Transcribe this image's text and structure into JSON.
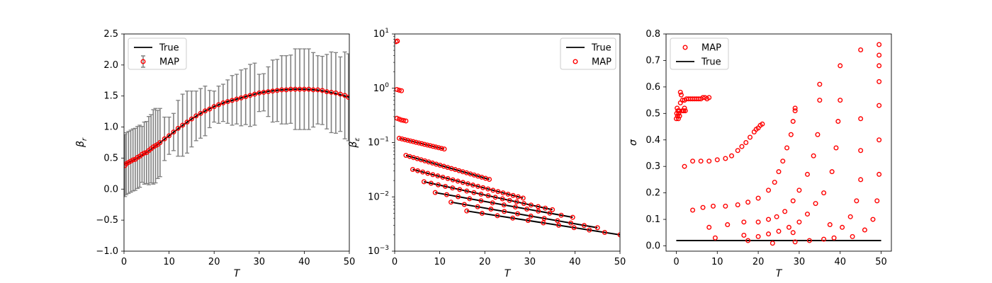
{
  "chart_data": [
    {
      "type": "scatter",
      "xlabel": "T",
      "ylabel": "β_r",
      "xlim": [
        0,
        50
      ],
      "ylim": [
        -1.0,
        2.5
      ],
      "x_ticks": [
        "0",
        "10",
        "20",
        "30",
        "40",
        "50"
      ],
      "y_ticks": [
        "−1.0",
        "−0.5",
        "0.0",
        "0.5",
        "1.0",
        "1.5",
        "2.0",
        "2.5"
      ],
      "legend": {
        "placement": "top-left",
        "entries": [
          "True",
          "MAP"
        ]
      },
      "series": [
        {
          "name": "True",
          "style": "line",
          "color": "#000000",
          "x": [
            0,
            2.5,
            5,
            7.5,
            10,
            12.5,
            15,
            17.5,
            20,
            22.5,
            25,
            27.5,
            30,
            32.5,
            35,
            37.5,
            40,
            42.5,
            45,
            47.5,
            50
          ],
          "y": [
            0.4,
            0.48,
            0.59,
            0.72,
            0.86,
            1.0,
            1.13,
            1.24,
            1.33,
            1.4,
            1.45,
            1.5,
            1.55,
            1.58,
            1.6,
            1.61,
            1.61,
            1.6,
            1.57,
            1.53,
            1.48
          ]
        },
        {
          "name": "MAP",
          "style": "markers",
          "color": "#ff0000",
          "errorbar_color": "#808080",
          "x": [
            0.2,
            0.5,
            1.0,
            1.5,
            2.0,
            2.5,
            3.0,
            3.5,
            4.0,
            4.5,
            5.0,
            5.5,
            6.0,
            6.5,
            7.0,
            7.5,
            8.0,
            9.0,
            10.0,
            11.0,
            12.0,
            13.0,
            14.0,
            15.0,
            16.0,
            17.0,
            18.0,
            19.0,
            20.0,
            21.0,
            22.0,
            23.0,
            24.0,
            25.0,
            26.0,
            27.0,
            28.0,
            29.0,
            30.0,
            31.0,
            32.0,
            33.0,
            34.0,
            35.0,
            36.0,
            37.0,
            38.0,
            39.0,
            40.0,
            41.0,
            42.0,
            43.0,
            44.0,
            45.0,
            46.0,
            47.0,
            48.0,
            49.0,
            49.8
          ],
          "y": [
            0.38,
            0.41,
            0.43,
            0.45,
            0.47,
            0.48,
            0.51,
            0.53,
            0.56,
            0.58,
            0.59,
            0.62,
            0.65,
            0.68,
            0.7,
            0.72,
            0.75,
            0.81,
            0.86,
            0.92,
            0.98,
            1.03,
            1.08,
            1.13,
            1.18,
            1.22,
            1.26,
            1.29,
            1.33,
            1.36,
            1.39,
            1.41,
            1.43,
            1.45,
            1.47,
            1.49,
            1.51,
            1.53,
            1.55,
            1.56,
            1.57,
            1.58,
            1.59,
            1.6,
            1.6,
            1.61,
            1.61,
            1.61,
            1.61,
            1.61,
            1.6,
            1.6,
            1.59,
            1.57,
            1.56,
            1.55,
            1.53,
            1.51,
            1.48
          ],
          "y_error": [
            0.5,
            0.5,
            0.5,
            0.5,
            0.5,
            0.5,
            0.5,
            0.5,
            0.45,
            0.5,
            0.5,
            0.55,
            0.55,
            0.6,
            0.6,
            0.55,
            0.55,
            0.35,
            0.3,
            0.3,
            0.45,
            0.5,
            0.5,
            0.45,
            0.4,
            0.4,
            0.4,
            0.3,
            0.25,
            0.3,
            0.3,
            0.35,
            0.4,
            0.4,
            0.45,
            0.45,
            0.5,
            0.5,
            0.3,
            0.3,
            0.4,
            0.5,
            0.5,
            0.55,
            0.55,
            0.55,
            0.65,
            0.65,
            0.65,
            0.65,
            0.6,
            0.55,
            0.55,
            0.6,
            0.65,
            0.65,
            0.6,
            0.7,
            0.7
          ]
        }
      ]
    },
    {
      "type": "scatter",
      "xlabel": "T",
      "ylabel": "β_ε",
      "yscale": "log",
      "xlim": [
        0,
        50
      ],
      "ylim": [
        0.001,
        10
      ],
      "x_ticks": [
        "0",
        "10",
        "20",
        "30",
        "40",
        "50"
      ],
      "y_ticks": [
        "10^-3",
        "10^-2",
        "10^-1",
        "10^0",
        "10^1"
      ],
      "legend": {
        "placement": "top-right",
        "entries": [
          "True",
          "MAP"
        ]
      },
      "series": [
        {
          "name": "True",
          "style": "segments",
          "color": "#000000",
          "segments": [
            {
              "x": [
                1.0,
                11.0
              ],
              "y": [
                0.12,
                0.076
              ]
            },
            {
              "x": [
                2.5,
                21.0
              ],
              "y": [
                0.058,
                0.021
              ]
            },
            {
              "x": [
                4.0,
                28.5
              ],
              "y": [
                0.032,
                0.0095
              ]
            },
            {
              "x": [
                6.5,
                35.0
              ],
              "y": [
                0.019,
                0.0058
              ]
            },
            {
              "x": [
                9.0,
                39.5
              ],
              "y": [
                0.012,
                0.0042
              ]
            },
            {
              "x": [
                12.5,
                45.0
              ],
              "y": [
                0.008,
                0.0027
              ]
            },
            {
              "x": [
                16.0,
                50.0
              ],
              "y": [
                0.0055,
                0.002
              ]
            }
          ]
        },
        {
          "name": "MAP",
          "style": "markers",
          "color": "#ff0000",
          "clusters": [
            {
              "x": [
                0.3,
                0.6
              ],
              "y": [
                7.2,
                7.4
              ]
            },
            {
              "x": [
                0.5,
                1.0,
                1.5
              ],
              "y": [
                0.95,
                0.92,
                0.9
              ]
            },
            {
              "x": [
                0.5,
                1.0,
                1.5,
                2.0,
                2.5
              ],
              "y": [
                0.28,
                0.27,
                0.26,
                0.255,
                0.25
              ]
            },
            {
              "x": [
                1.0,
                11.0
              ],
              "y": [
                0.12,
                0.076
              ],
              "n": 17
            },
            {
              "x": [
                2.5,
                21.0
              ],
              "y": [
                0.058,
                0.021
              ],
              "n": 23
            },
            {
              "x": [
                4.0,
                28.5
              ],
              "y": [
                0.032,
                0.0095
              ],
              "n": 23
            },
            {
              "x": [
                6.5,
                35.0
              ],
              "y": [
                0.019,
                0.0058
              ],
              "n": 19
            },
            {
              "x": [
                9.0,
                39.5
              ],
              "y": [
                0.012,
                0.0042
              ],
              "n": 13
            },
            {
              "x": [
                12.5,
                45.0
              ],
              "y": [
                0.008,
                0.0027
              ],
              "n": 12
            },
            {
              "x": [
                16.0,
                50.0
              ],
              "y": [
                0.0055,
                0.002
              ],
              "n": 11
            }
          ]
        }
      ]
    },
    {
      "type": "scatter",
      "xlabel": "T",
      "ylabel": "σ",
      "xlim": [
        -2.5,
        52.5
      ],
      "ylim": [
        -0.02,
        0.8
      ],
      "x_ticks": [
        "0",
        "10",
        "20",
        "30",
        "40",
        "50"
      ],
      "y_ticks": [
        "0.0",
        "0.1",
        "0.2",
        "0.3",
        "0.4",
        "0.5",
        "0.6",
        "0.7",
        "0.8"
      ],
      "legend": {
        "placement": "top-left",
        "entries": [
          "MAP",
          "True"
        ]
      },
      "series": [
        {
          "name": "MAP",
          "style": "markers",
          "color": "#ff0000",
          "x": [
            0.0,
            0.1,
            0.2,
            0.3,
            0.4,
            0.5,
            0.6,
            0.7,
            0.8,
            1.0,
            1.2,
            1.5,
            1.8,
            2.0,
            2.2,
            1.0,
            1.5,
            2.0,
            2.5,
            3.0,
            3.5,
            4.0,
            4.5,
            5.0,
            5.5,
            6.0,
            6.5,
            7.0,
            7.5,
            8.0,
            2.0,
            4.0,
            6.0,
            8.0,
            10.0,
            12.0,
            13.5,
            15.0,
            16.0,
            17.0,
            18.0,
            19.0,
            19.5,
            20.0,
            20.5,
            21.0,
            4.0,
            6.5,
            9.0,
            12.0,
            15.0,
            17.5,
            20.0,
            22.5,
            24.0,
            25.0,
            26.0,
            27.0,
            28.0,
            28.5,
            29.0,
            29.0,
            8.0,
            12.5,
            16.5,
            20.0,
            22.5,
            24.5,
            26.5,
            28.5,
            30.0,
            32.0,
            33.5,
            34.5,
            35.0,
            35.0,
            17.5,
            20.0,
            22.5,
            25.0,
            27.5,
            30.0,
            32.0,
            34.0,
            36.0,
            38.0,
            39.0,
            39.5,
            40.0,
            40.0,
            23.5,
            29.0,
            32.5,
            36.0,
            38.5,
            40.5,
            42.5,
            44.0,
            45.0,
            45.0,
            45.0,
            45.0,
            9.5,
            16.5,
            28.5,
            37.5,
            43.0,
            46.0,
            48.0,
            49.0,
            49.5,
            49.5,
            49.5,
            49.5,
            49.5,
            49.5,
            49.5
          ],
          "y": [
            0.48,
            0.5,
            0.52,
            0.49,
            0.51,
            0.48,
            0.5,
            0.51,
            0.49,
            0.58,
            0.57,
            0.51,
            0.51,
            0.52,
            0.51,
            0.54,
            0.55,
            0.55,
            0.555,
            0.555,
            0.555,
            0.555,
            0.555,
            0.555,
            0.555,
            0.555,
            0.56,
            0.56,
            0.555,
            0.56,
            0.3,
            0.32,
            0.32,
            0.32,
            0.325,
            0.33,
            0.34,
            0.36,
            0.375,
            0.39,
            0.41,
            0.43,
            0.44,
            0.445,
            0.455,
            0.46,
            0.135,
            0.145,
            0.15,
            0.15,
            0.155,
            0.165,
            0.18,
            0.21,
            0.24,
            0.28,
            0.32,
            0.37,
            0.42,
            0.47,
            0.51,
            0.52,
            0.07,
            0.08,
            0.09,
            0.09,
            0.1,
            0.11,
            0.13,
            0.17,
            0.21,
            0.27,
            0.34,
            0.42,
            0.55,
            0.61,
            0.02,
            0.035,
            0.045,
            0.055,
            0.07,
            0.09,
            0.12,
            0.16,
            0.2,
            0.28,
            0.37,
            0.47,
            0.55,
            0.68,
            0.01,
            0.015,
            0.02,
            0.025,
            0.03,
            0.07,
            0.11,
            0.17,
            0.25,
            0.36,
            0.48,
            0.74,
            0.03,
            0.04,
            0.05,
            0.08,
            0.035,
            0.06,
            0.1,
            0.17,
            0.27,
            0.4,
            0.53,
            0.62,
            0.68,
            0.72,
            0.76
          ]
        },
        {
          "name": "True",
          "style": "line",
          "color": "#000000",
          "x": [
            0,
            50
          ],
          "y": [
            0.02,
            0.02
          ]
        }
      ]
    }
  ]
}
